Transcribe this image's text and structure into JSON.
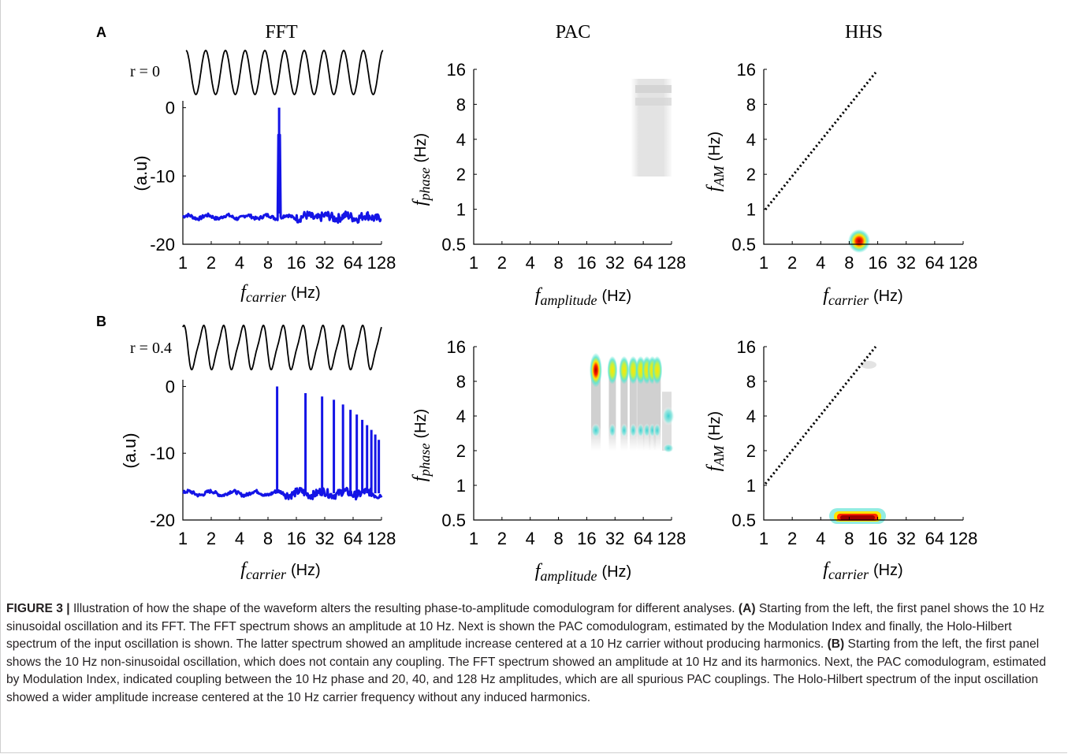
{
  "figure": {
    "panel_labels": [
      "A",
      "B"
    ],
    "column_titles": [
      "FFT",
      "PAC",
      "HHS"
    ],
    "r_labels": [
      "r = 0",
      "r = 0.4"
    ],
    "colors": {
      "spectrum": "#1414e6",
      "axis": "#000000",
      "hot": "#b40000",
      "warm": "#ffee00",
      "cool": "#55e6d2"
    }
  },
  "chart_data": [
    {
      "panel": "A",
      "column": "FFT",
      "type": "line",
      "xlabel_var": "f",
      "xlabel_sub": "carrier",
      "xlabel_unit": "(Hz)",
      "ylabel": "(a.u)",
      "x_ticks": [
        "1",
        "2",
        "4",
        "8",
        "16",
        "32",
        "64",
        "128"
      ],
      "y_ticks": [
        "0",
        "-10",
        "-20"
      ],
      "x_scale": "log2",
      "xlim": [
        1,
        128
      ],
      "ylim": [
        -20,
        1
      ],
      "series": [
        {
          "values": [
            [
              1,
              -16
            ],
            [
              2,
              -16.3
            ],
            [
              4,
              -15.8
            ],
            [
              8,
              -15.9
            ],
            [
              10,
              -16
            ],
            [
              10.5,
              0
            ],
            [
              11,
              -16
            ],
            [
              16,
              -16.1
            ],
            [
              32,
              -16
            ],
            [
              64,
              -16
            ],
            [
              128,
              -16
            ]
          ]
        }
      ]
    },
    {
      "panel": "A",
      "column": "PAC",
      "type": "heatmap",
      "xlabel_var": "f",
      "xlabel_sub": "amplitude",
      "xlabel_unit": "(Hz)",
      "ylabel_var": "f",
      "ylabel_sub": "phase",
      "ylabel_unit": "(Hz)",
      "x_ticks": [
        "1",
        "2",
        "4",
        "8",
        "16",
        "32",
        "64",
        "128"
      ],
      "y_ticks": [
        "0.5",
        "1",
        "2",
        "4",
        "8",
        "16"
      ],
      "x_scale": "log2",
      "y_scale": "log2",
      "xlim": [
        1,
        128
      ],
      "ylim": [
        0.5,
        16
      ],
      "blobs": [
        {
          "x": [
            64,
            128
          ],
          "y": [
            2,
            12
          ],
          "intensity": 0.05
        }
      ]
    },
    {
      "panel": "A",
      "column": "HHS",
      "type": "heatmap",
      "xlabel_var": "f",
      "xlabel_sub": "carrier",
      "xlabel_unit": "(Hz)",
      "ylabel_var": "f",
      "ylabel_sub": "AM",
      "ylabel_unit": "(Hz)",
      "x_ticks": [
        "1",
        "2",
        "4",
        "8",
        "16",
        "32",
        "64",
        "128"
      ],
      "y_ticks": [
        "0.5",
        "1",
        "2",
        "4",
        "8",
        "16"
      ],
      "x_scale": "log2",
      "y_scale": "log2",
      "xlim": [
        1,
        128
      ],
      "ylim": [
        0.5,
        16
      ],
      "diagonal": {
        "from": [
          1,
          1
        ],
        "to": [
          16,
          16
        ],
        "style": "dotted"
      },
      "blobs": [
        {
          "x": [
            10,
            10
          ],
          "y": [
            0.5,
            0.5
          ],
          "intensity": 1.0
        }
      ]
    },
    {
      "panel": "B",
      "column": "FFT",
      "type": "line",
      "xlabel_var": "f",
      "xlabel_sub": "carrier",
      "xlabel_unit": "(Hz)",
      "ylabel": "(a.u)",
      "x_ticks": [
        "1",
        "2",
        "4",
        "8",
        "16",
        "32",
        "64",
        "128"
      ],
      "y_ticks": [
        "0",
        "-10",
        "-20"
      ],
      "x_scale": "log2",
      "xlim": [
        1,
        128
      ],
      "ylim": [
        -20,
        1
      ],
      "series": [
        {
          "baseline": -16,
          "peaks": [
            [
              10,
              0
            ],
            [
              20,
              -1
            ],
            [
              30,
              -1.5
            ],
            [
              40,
              -2
            ],
            [
              50,
              -2.7
            ],
            [
              60,
              -3.5
            ],
            [
              70,
              -4.2
            ],
            [
              80,
              -5
            ],
            [
              90,
              -5.8
            ],
            [
              100,
              -6.5
            ],
            [
              110,
              -7.2
            ],
            [
              120,
              -8
            ]
          ]
        }
      ]
    },
    {
      "panel": "B",
      "column": "PAC",
      "type": "heatmap",
      "xlabel_var": "f",
      "xlabel_sub": "amplitude",
      "xlabel_unit": "(Hz)",
      "ylabel_var": "f",
      "ylabel_sub": "phase",
      "ylabel_unit": "(Hz)",
      "x_ticks": [
        "1",
        "2",
        "4",
        "8",
        "16",
        "32",
        "64",
        "128"
      ],
      "y_ticks": [
        "0.5",
        "1",
        "2",
        "4",
        "8",
        "16"
      ],
      "x_scale": "log2",
      "y_scale": "log2",
      "xlim": [
        1,
        128
      ],
      "ylim": [
        0.5,
        16
      ],
      "blobs": [
        {
          "x": [
            20,
            20
          ],
          "y": [
            10,
            10
          ],
          "intensity": 1.0
        },
        {
          "x": [
            30,
            30
          ],
          "y": [
            10,
            10
          ],
          "intensity": 0.6
        },
        {
          "x": [
            40,
            40
          ],
          "y": [
            10,
            10
          ],
          "intensity": 0.55
        },
        {
          "x": [
            50,
            50
          ],
          "y": [
            10,
            10
          ],
          "intensity": 0.5
        },
        {
          "x": [
            60,
            60
          ],
          "y": [
            10,
            10
          ],
          "intensity": 0.5
        },
        {
          "x": [
            70,
            70
          ],
          "y": [
            10,
            10
          ],
          "intensity": 0.45
        },
        {
          "x": [
            80,
            80
          ],
          "y": [
            10,
            10
          ],
          "intensity": 0.4
        },
        {
          "x": [
            90,
            90
          ],
          "y": [
            10,
            10
          ],
          "intensity": 0.35
        },
        {
          "x": [
            128,
            128
          ],
          "y": [
            2,
            5
          ],
          "intensity": 0.35
        }
      ]
    },
    {
      "panel": "B",
      "column": "HHS",
      "type": "heatmap",
      "xlabel_var": "f",
      "xlabel_sub": "carrier",
      "xlabel_unit": "(Hz)",
      "ylabel_var": "f",
      "ylabel_sub": "AM",
      "ylabel_unit": "(Hz)",
      "x_ticks": [
        "1",
        "2",
        "4",
        "8",
        "16",
        "32",
        "64",
        "128"
      ],
      "y_ticks": [
        "0.5",
        "1",
        "2",
        "4",
        "8",
        "16"
      ],
      "x_scale": "log2",
      "y_scale": "log2",
      "xlim": [
        1,
        128
      ],
      "ylim": [
        0.5,
        16
      ],
      "diagonal": {
        "from": [
          1,
          1
        ],
        "to": [
          16,
          16
        ],
        "style": "dotted"
      },
      "blobs": [
        {
          "x": [
            7,
            15
          ],
          "y": [
            0.5,
            0.5
          ],
          "intensity": 1.0
        }
      ]
    }
  ],
  "caption": {
    "title": "FIGURE 3 |",
    "intro": " Illustration of how the shape of the waveform alters the resulting phase-to-amplitude comodulogram for different analyses. ",
    "a_label": "(A)",
    "a_text": " Starting from the left, the first panel shows the 10 Hz sinusoidal oscillation and its FFT. The FFT spectrum shows an amplitude at 10 Hz. Next is shown the PAC comodulogram, estimated by the Modulation Index and finally, the Holo-Hilbert spectrum of the input oscillation is shown. The latter spectrum showed an amplitude increase centered at a 10 Hz carrier without producing harmonics. ",
    "b_label": "(B)",
    "b_text": " Starting from the left, the first panel shows the 10 Hz non-sinusoidal oscillation, which does not contain any coupling. The FFT spectrum showed an amplitude at 10 Hz and its harmonics. Next, the PAC comodulogram, estimated by Modulation Index, indicated coupling between the 10 Hz phase and 20, 40, and 128 Hz amplitudes, which are all spurious PAC couplings. The Holo-Hilbert spectrum of the input oscillation showed a wider amplitude increase centered at the 10 Hz carrier frequency without any induced harmonics."
  }
}
